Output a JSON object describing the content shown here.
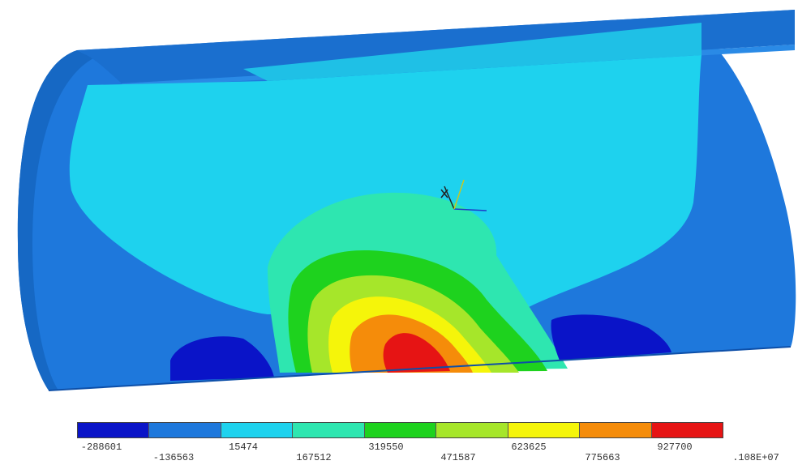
{
  "legend": {
    "colors": [
      "#0a14c8",
      "#1e78dc",
      "#1ed2ee",
      "#2ee6b0",
      "#1ed21e",
      "#a6e62a",
      "#f5f50a",
      "#f58c0a",
      "#e61414"
    ],
    "labels": [
      "-288601",
      "-136563",
      "15474",
      "167512",
      "319550",
      "471587",
      "623625",
      "775663",
      "927700",
      ".108E+07"
    ]
  },
  "model": {
    "contour_colors": {
      "outer_shell": "#1e78dc",
      "outer_shell_dark": "#1668c4",
      "shell_edge": "#1a6fcf",
      "inner_surface": "#1ed2ee",
      "band_teal": "#2ee6b0",
      "band_green": "#1ed21e",
      "band_lime": "#a6e62a",
      "band_yellow": "#f5f50a",
      "band_orange": "#f58c0a",
      "band_red": "#e61414",
      "low_blue": "#0a14c8"
    },
    "triad_icon": "coordinate-triad-icon"
  }
}
